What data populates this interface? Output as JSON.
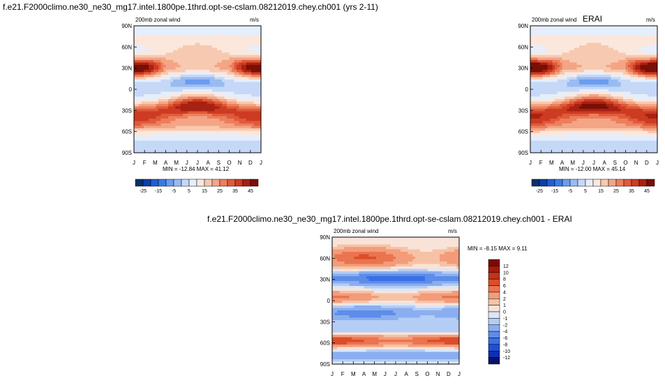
{
  "panels": [
    {
      "id": "model",
      "title": "f.e21.F2000climo.ne30_ne30_mg17.intel.1800pe.1thrd.opt-se-cslam.08212019.chey.ch001 (yrs 2-11)",
      "left_label": "200mb zonal wind",
      "right_label": "m/s",
      "stats": "MIN = -12.84 MAX =  41.12"
    },
    {
      "id": "obs",
      "title": "ERAI",
      "left_label": "200mb zonal wind",
      "right_label": "m/s",
      "stats": "MIN = -12.00 MAX =  45.14"
    },
    {
      "id": "diff",
      "title": "f.e21.F2000climo.ne30_ne30_mg17.intel.1800pe.1thrd.opt-se-cslam.08212019.chey.ch001 - ERAI",
      "left_label": "200mb zonal wind",
      "right_label": "m/s",
      "stats": "MIN =  -8.15 MAX =   9.11"
    }
  ],
  "chart_data": [
    {
      "type": "heatmap",
      "title": "f.e21.F2000climo.ne30_ne30_mg17.intel.1800pe.1thrd.opt-se-cslam.08212019.chey.ch001 (yrs 2-11)",
      "variable": "200mb zonal wind",
      "units": "m/s",
      "x_ticks": [
        "J",
        "F",
        "M",
        "A",
        "M",
        "J",
        "J",
        "A",
        "S",
        "O",
        "N",
        "D",
        "J"
      ],
      "y_ticks": [
        "90N",
        "60N",
        "30N",
        "0",
        "30S",
        "60S",
        "90S"
      ],
      "ylim": [
        -90,
        90
      ],
      "colorbar_labels": [
        "-25",
        "-15",
        "-5",
        "5",
        "15",
        "25",
        "35",
        "45"
      ],
      "min": -12.84,
      "max": 41.12
    },
    {
      "type": "heatmap",
      "title": "ERAI",
      "variable": "200mb zonal wind",
      "units": "m/s",
      "x_ticks": [
        "J",
        "F",
        "M",
        "A",
        "M",
        "J",
        "J",
        "A",
        "S",
        "O",
        "N",
        "D",
        "J"
      ],
      "y_ticks": [
        "90N",
        "60N",
        "30N",
        "0",
        "30S",
        "60S",
        "90S"
      ],
      "ylim": [
        -90,
        90
      ],
      "colorbar_labels": [
        "-25",
        "-15",
        "-5",
        "5",
        "15",
        "25",
        "35",
        "45"
      ],
      "min": -12.0,
      "max": 45.14
    },
    {
      "type": "heatmap",
      "title": "f.e21.F2000climo.ne30_ne30_mg17.intel.1800pe.1thrd.opt-se-cslam.08212019.chey.ch001 - ERAI",
      "variable": "200mb zonal wind",
      "units": "m/s",
      "x_ticks": [
        "J",
        "F",
        "M",
        "A",
        "M",
        "J",
        "J",
        "A",
        "S",
        "O",
        "N",
        "D",
        "J"
      ],
      "y_ticks": [
        "90N",
        "60N",
        "30N",
        "0",
        "30S",
        "60S",
        "90S"
      ],
      "ylim": [
        -90,
        90
      ],
      "colorbar_labels": [
        "12",
        "10",
        "8",
        "6",
        "4",
        "2",
        "1",
        "0",
        "-1",
        "-2",
        "-4",
        "-6",
        "-8",
        "-10",
        "-12"
      ],
      "min": -8.15,
      "max": 9.11
    }
  ],
  "colors": {
    "abs_scale": [
      "#08306b",
      "#0d3fa6",
      "#1f5fd6",
      "#3a7be8",
      "#6a9cef",
      "#98bbf3",
      "#c6d8f7",
      "#e6eefb",
      "#fbe7dc",
      "#f7c9b0",
      "#f3a585",
      "#ec7f5c",
      "#e05a3a",
      "#cc3b22",
      "#a82211",
      "#7a0f06"
    ],
    "diff_scale": [
      "#08126b",
      "#0d2fb0",
      "#1f4fd8",
      "#3a6fe6",
      "#5d8de9",
      "#8aaef0",
      "#b4cdf4",
      "#dbe6f8",
      "#f9e3d8",
      "#f6c2a6",
      "#f29c7a",
      "#ea744f",
      "#dc4d2a",
      "#c63119",
      "#a41a09",
      "#7a0a03"
    ]
  }
}
